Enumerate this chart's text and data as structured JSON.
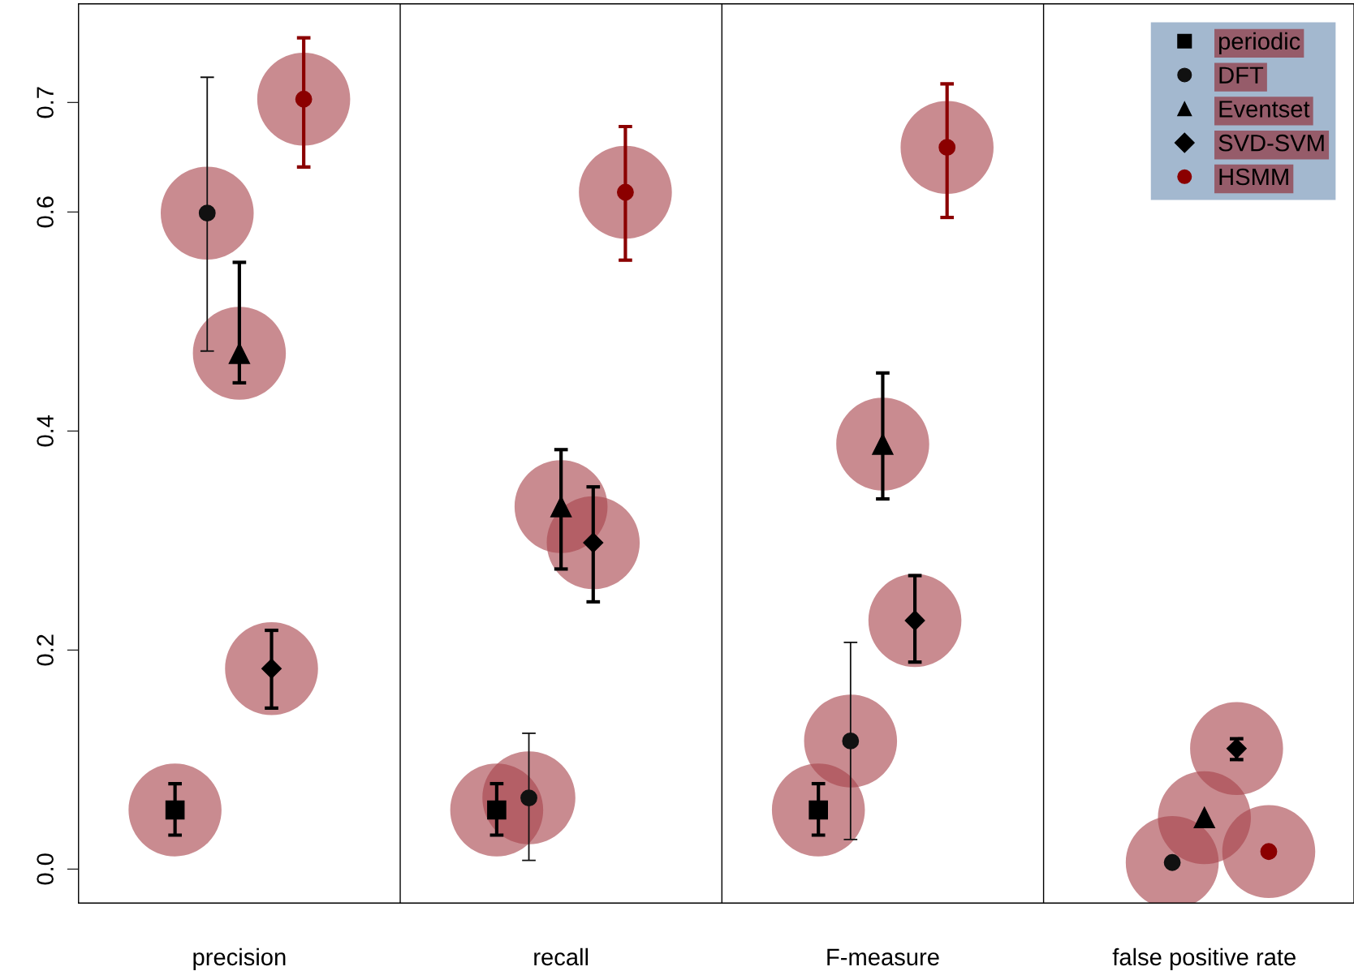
{
  "chart_data": {
    "type": "scatter",
    "categories": [
      "precision",
      "recall",
      "F-measure",
      "false positive rate"
    ],
    "series": [
      {
        "name": "periodic",
        "color": "#000000",
        "marker": "square",
        "values": [
          0.054,
          0.054,
          0.054,
          null
        ],
        "errors": [
          [
            0.031,
            0.078
          ],
          [
            0.031,
            0.078
          ],
          [
            0.031,
            0.078
          ],
          null
        ]
      },
      {
        "name": "DFT",
        "color": "#111111",
        "marker": "circle",
        "values": [
          0.599,
          0.065,
          0.117,
          0.006
        ],
        "errors": [
          [
            0.473,
            0.723
          ],
          [
            0.008,
            0.124
          ],
          [
            0.027,
            0.207
          ],
          null
        ]
      },
      {
        "name": "Eventset",
        "color": "#000000",
        "marker": "triangle",
        "values": [
          0.471,
          0.331,
          0.388,
          0.047
        ],
        "errors": [
          [
            0.444,
            0.554
          ],
          [
            0.274,
            0.383
          ],
          [
            0.338,
            0.453
          ],
          null
        ]
      },
      {
        "name": "SVD-SVM",
        "color": "#000000",
        "marker": "diamond",
        "values": [
          0.183,
          0.298,
          0.227,
          0.11
        ],
        "errors": [
          [
            0.147,
            0.218
          ],
          [
            0.244,
            0.349
          ],
          [
            0.189,
            0.268
          ],
          [
            0.1,
            0.119
          ]
        ]
      },
      {
        "name": "HSMM",
        "color": "#8b0000",
        "marker": "circle",
        "values": [
          0.703,
          0.618,
          0.659,
          0.016
        ],
        "errors": [
          [
            0.641,
            0.759
          ],
          [
            0.556,
            0.678
          ],
          [
            0.595,
            0.717
          ],
          null
        ]
      }
    ],
    "ylim": [
      -0.031,
      0.79
    ],
    "yticks": [
      {
        "value": 0,
        "label": "0.0"
      },
      {
        "value": 0.2,
        "label": "0.2"
      },
      {
        "value": 0.4,
        "label": "0.4"
      },
      {
        "value": 0.6,
        "label": "0.6"
      },
      {
        "value": 0.7,
        "label": "0.7"
      }
    ],
    "legend": "top right",
    "grid": false
  }
}
